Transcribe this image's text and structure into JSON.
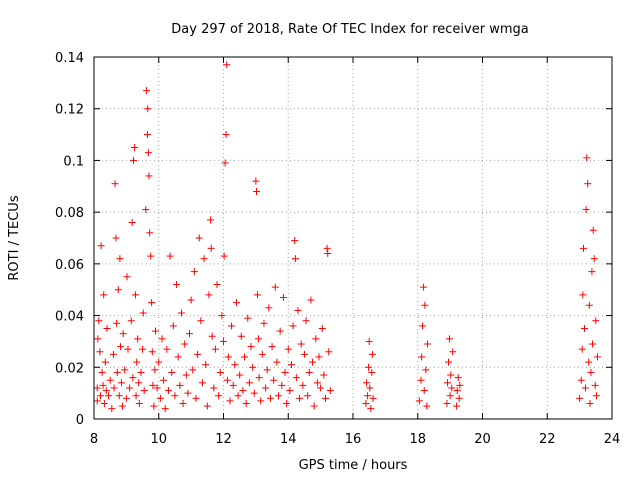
{
  "chart_data": {
    "type": "scatter",
    "title": "Day 297 of 2018, Rate Of TEC Index for receiver wmga",
    "xlabel": "GPS time / hours",
    "ylabel": "ROTI / TECUs",
    "xlim": [
      8,
      24
    ],
    "ylim": [
      0,
      0.14
    ],
    "xticks": [
      "8",
      "10",
      "12",
      "14",
      "16",
      "18",
      "20",
      "22",
      "24"
    ],
    "yticks": [
      "0",
      "0.02",
      "0.04",
      "0.06",
      "0.08",
      "0.1",
      "0.12",
      "0.14"
    ],
    "grid": true,
    "marker": "plus",
    "color": "#ff0000",
    "series": [
      {
        "name": "ROTI",
        "points": [
          [
            8.1,
            0.007
          ],
          [
            8.1,
            0.012
          ],
          [
            8.12,
            0.031
          ],
          [
            8.15,
            0.038
          ],
          [
            8.18,
            0.026
          ],
          [
            8.2,
            0.009
          ],
          [
            8.22,
            0.067
          ],
          [
            8.25,
            0.018
          ],
          [
            8.28,
            0.013
          ],
          [
            8.3,
            0.048
          ],
          [
            8.32,
            0.006
          ],
          [
            8.35,
            0.022
          ],
          [
            8.38,
            0.011
          ],
          [
            8.4,
            0.035
          ],
          [
            8.45,
            0.009
          ],
          [
            8.5,
            0.015
          ],
          [
            8.55,
            0.004
          ],
          [
            8.6,
            0.025
          ],
          [
            8.62,
            0.012
          ],
          [
            8.65,
            0.091
          ],
          [
            8.68,
            0.07
          ],
          [
            8.7,
            0.037
          ],
          [
            8.72,
            0.018
          ],
          [
            8.75,
            0.05
          ],
          [
            8.78,
            0.009
          ],
          [
            8.8,
            0.062
          ],
          [
            8.82,
            0.028
          ],
          [
            8.85,
            0.014
          ],
          [
            8.88,
            0.005
          ],
          [
            8.9,
            0.033
          ],
          [
            8.95,
            0.019
          ],
          [
            9.0,
            0.008
          ],
          [
            9.02,
            0.055
          ],
          [
            9.05,
            0.027
          ],
          [
            9.1,
            0.012
          ],
          [
            9.15,
            0.038
          ],
          [
            9.18,
            0.076
          ],
          [
            9.2,
            0.016
          ],
          [
            9.22,
            0.1
          ],
          [
            9.25,
            0.105
          ],
          [
            9.28,
            0.048
          ],
          [
            9.3,
            0.009
          ],
          [
            9.32,
            0.022
          ],
          [
            9.35,
            0.031
          ],
          [
            9.38,
            0.014
          ],
          [
            9.4,
            0.006
          ],
          [
            9.45,
            0.018
          ],
          [
            9.5,
            0.027
          ],
          [
            9.52,
            0.041
          ],
          [
            9.55,
            0.011
          ],
          [
            9.6,
            0.081
          ],
          [
            9.62,
            0.127
          ],
          [
            9.65,
            0.11
          ],
          [
            9.66,
            0.12
          ],
          [
            9.68,
            0.103
          ],
          [
            9.7,
            0.094
          ],
          [
            9.72,
            0.072
          ],
          [
            9.75,
            0.063
          ],
          [
            9.78,
            0.045
          ],
          [
            9.8,
            0.026
          ],
          [
            9.82,
            0.013
          ],
          [
            9.85,
            0.005
          ],
          [
            9.88,
            0.019
          ],
          [
            9.9,
            0.034
          ],
          [
            9.95,
            0.012
          ],
          [
            10.0,
            0.022
          ],
          [
            10.05,
            0.008
          ],
          [
            10.1,
            0.031
          ],
          [
            10.15,
            0.015
          ],
          [
            10.2,
            0.004
          ],
          [
            10.25,
            0.027
          ],
          [
            10.3,
            0.011
          ],
          [
            10.35,
            0.063
          ],
          [
            10.4,
            0.018
          ],
          [
            10.45,
            0.036
          ],
          [
            10.5,
            0.009
          ],
          [
            10.55,
            0.052
          ],
          [
            10.6,
            0.024
          ],
          [
            10.65,
            0.013
          ],
          [
            10.7,
            0.041
          ],
          [
            10.75,
            0.006
          ],
          [
            10.8,
            0.029
          ],
          [
            10.85,
            0.017
          ],
          [
            10.9,
            0.01
          ],
          [
            10.95,
            0.033
          ],
          [
            11.0,
            0.046
          ],
          [
            11.05,
            0.019
          ],
          [
            11.1,
            0.057
          ],
          [
            11.15,
            0.008
          ],
          [
            11.2,
            0.025
          ],
          [
            11.25,
            0.07
          ],
          [
            11.3,
            0.038
          ],
          [
            11.35,
            0.014
          ],
          [
            11.4,
            0.062
          ],
          [
            11.45,
            0.021
          ],
          [
            11.5,
            0.005
          ],
          [
            11.55,
            0.048
          ],
          [
            11.6,
            0.077
          ],
          [
            11.62,
            0.066
          ],
          [
            11.65,
            0.032
          ],
          [
            11.7,
            0.012
          ],
          [
            11.75,
            0.027
          ],
          [
            11.8,
            0.052
          ],
          [
            11.85,
            0.009
          ],
          [
            11.9,
            0.018
          ],
          [
            11.95,
            0.04
          ],
          [
            12.0,
            0.03
          ],
          [
            12.02,
            0.063
          ],
          [
            12.05,
            0.099
          ],
          [
            12.08,
            0.11
          ],
          [
            12.1,
            0.137
          ],
          [
            12.12,
            0.015
          ],
          [
            12.15,
            0.024
          ],
          [
            12.2,
            0.007
          ],
          [
            12.25,
            0.036
          ],
          [
            12.3,
            0.013
          ],
          [
            12.35,
            0.021
          ],
          [
            12.4,
            0.045
          ],
          [
            12.45,
            0.009
          ],
          [
            12.5,
            0.017
          ],
          [
            12.55,
            0.032
          ],
          [
            12.6,
            0.011
          ],
          [
            12.65,
            0.024
          ],
          [
            12.7,
            0.006
          ],
          [
            12.75,
            0.039
          ],
          [
            12.8,
            0.014
          ],
          [
            12.85,
            0.028
          ],
          [
            12.9,
            0.02
          ],
          [
            12.95,
            0.01
          ],
          [
            13.0,
            0.092
          ],
          [
            13.02,
            0.088
          ],
          [
            13.05,
            0.048
          ],
          [
            13.08,
            0.031
          ],
          [
            13.1,
            0.016
          ],
          [
            13.15,
            0.007
          ],
          [
            13.2,
            0.025
          ],
          [
            13.25,
            0.037
          ],
          [
            13.3,
            0.012
          ],
          [
            13.35,
            0.019
          ],
          [
            13.4,
            0.043
          ],
          [
            13.45,
            0.008
          ],
          [
            13.5,
            0.028
          ],
          [
            13.55,
            0.015
          ],
          [
            13.6,
            0.051
          ],
          [
            13.65,
            0.022
          ],
          [
            13.7,
            0.009
          ],
          [
            13.75,
            0.034
          ],
          [
            13.8,
            0.013
          ],
          [
            13.85,
            0.047
          ],
          [
            13.9,
            0.018
          ],
          [
            13.95,
            0.006
          ],
          [
            14.0,
            0.027
          ],
          [
            14.05,
            0.011
          ],
          [
            14.1,
            0.021
          ],
          [
            14.15,
            0.036
          ],
          [
            14.2,
            0.069
          ],
          [
            14.22,
            0.062
          ],
          [
            14.25,
            0.016
          ],
          [
            14.3,
            0.042
          ],
          [
            14.35,
            0.008
          ],
          [
            14.4,
            0.029
          ],
          [
            14.45,
            0.013
          ],
          [
            14.5,
            0.025
          ],
          [
            14.55,
            0.038
          ],
          [
            14.6,
            0.009
          ],
          [
            14.65,
            0.018
          ],
          [
            14.7,
            0.046
          ],
          [
            14.75,
            0.022
          ],
          [
            14.8,
            0.005
          ],
          [
            14.85,
            0.031
          ],
          [
            14.9,
            0.014
          ],
          [
            14.95,
            0.024
          ],
          [
            15.0,
            0.012
          ],
          [
            15.05,
            0.035
          ],
          [
            15.1,
            0.017
          ],
          [
            15.15,
            0.008
          ],
          [
            15.2,
            0.066
          ],
          [
            15.22,
            0.064
          ],
          [
            15.25,
            0.026
          ],
          [
            15.3,
            0.011
          ],
          [
            16.4,
            0.006
          ],
          [
            16.42,
            0.014
          ],
          [
            16.45,
            0.009
          ],
          [
            16.48,
            0.02
          ],
          [
            16.5,
            0.03
          ],
          [
            16.52,
            0.012
          ],
          [
            16.55,
            0.004
          ],
          [
            16.58,
            0.018
          ],
          [
            16.6,
            0.025
          ],
          [
            16.62,
            0.008
          ],
          [
            18.05,
            0.007
          ],
          [
            18.1,
            0.015
          ],
          [
            18.12,
            0.024
          ],
          [
            18.15,
            0.036
          ],
          [
            18.18,
            0.051
          ],
          [
            18.2,
            0.011
          ],
          [
            18.22,
            0.044
          ],
          [
            18.25,
            0.019
          ],
          [
            18.28,
            0.005
          ],
          [
            18.3,
            0.029
          ],
          [
            18.9,
            0.006
          ],
          [
            18.92,
            0.014
          ],
          [
            18.95,
            0.022
          ],
          [
            18.98,
            0.031
          ],
          [
            19.0,
            0.009
          ],
          [
            19.02,
            0.017
          ],
          [
            19.05,
            0.012
          ],
          [
            19.08,
            0.026
          ],
          [
            19.2,
            0.005
          ],
          [
            19.22,
            0.011
          ],
          [
            19.25,
            0.016
          ],
          [
            19.28,
            0.008
          ],
          [
            19.3,
            0.013
          ],
          [
            23.0,
            0.008
          ],
          [
            23.05,
            0.015
          ],
          [
            23.08,
            0.027
          ],
          [
            23.1,
            0.048
          ],
          [
            23.12,
            0.066
          ],
          [
            23.15,
            0.035
          ],
          [
            23.18,
            0.012
          ],
          [
            23.2,
            0.081
          ],
          [
            23.22,
            0.101
          ],
          [
            23.25,
            0.091
          ],
          [
            23.28,
            0.022
          ],
          [
            23.3,
            0.044
          ],
          [
            23.32,
            0.006
          ],
          [
            23.35,
            0.018
          ],
          [
            23.38,
            0.057
          ],
          [
            23.4,
            0.029
          ],
          [
            23.42,
            0.073
          ],
          [
            23.45,
            0.062
          ],
          [
            23.48,
            0.013
          ],
          [
            23.5,
            0.038
          ],
          [
            23.52,
            0.009
          ],
          [
            23.55,
            0.024
          ]
        ]
      }
    ]
  }
}
